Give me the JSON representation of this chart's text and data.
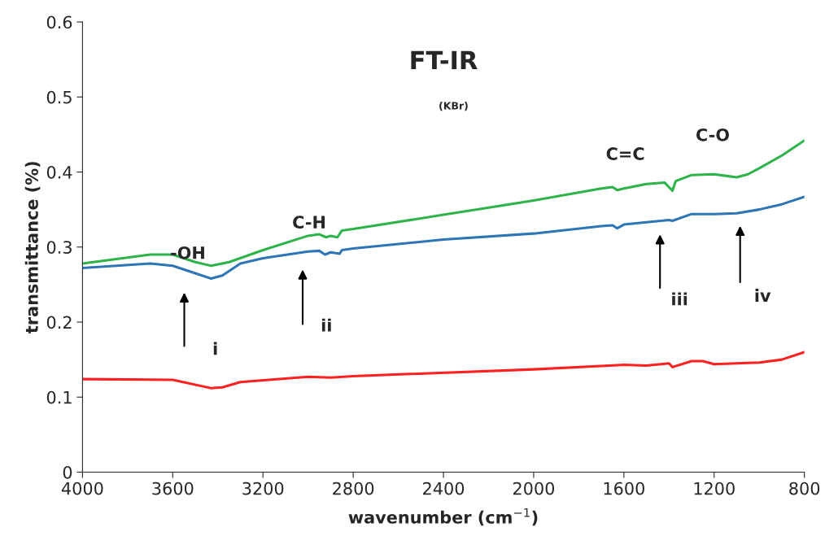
{
  "chart_data": {
    "type": "line",
    "title": "FT-IR",
    "xlabel": "wavenumber (cm$^{−1}$)",
    "ylabel": "transmittance (%)",
    "xlim": [
      4000,
      800
    ],
    "xticks": [
      4000,
      3600,
      3200,
      2800,
      2400,
      2000,
      1600,
      1200,
      800
    ],
    "ylim": [
      0,
      0.6
    ],
    "yticks": [
      0,
      0.1,
      0.2,
      0.3,
      0.4,
      0.5,
      0.6
    ],
    "grid": false,
    "legend": false,
    "marker": "none",
    "line_style": "solid",
    "series": [
      {
        "color": "#2e75b6",
        "x": [
          4000,
          3700,
          3600,
          3500,
          3430,
          3380,
          3300,
          3200,
          3000,
          2950,
          2925,
          2900,
          2860,
          2850,
          2800,
          2400,
          2000,
          1700,
          1650,
          1630,
          1600,
          1500,
          1400,
          1385,
          1300,
          1200,
          1100,
          1000,
          900,
          800
        ],
        "values": [
          0.272,
          0.278,
          0.275,
          0.265,
          0.258,
          0.262,
          0.278,
          0.285,
          0.294,
          0.295,
          0.29,
          0.293,
          0.291,
          0.296,
          0.298,
          0.31,
          0.318,
          0.328,
          0.329,
          0.325,
          0.33,
          0.333,
          0.336,
          0.335,
          0.344,
          0.344,
          0.345,
          0.35,
          0.357,
          0.367
        ]
      },
      {
        "color": "#ff2020",
        "x": [
          4000,
          3600,
          3430,
          3380,
          3300,
          3000,
          2900,
          2800,
          2000,
          1600,
          1500,
          1400,
          1385,
          1300,
          1250,
          1200,
          1000,
          900,
          800
        ],
        "values": [
          0.124,
          0.123,
          0.112,
          0.113,
          0.12,
          0.127,
          0.126,
          0.128,
          0.137,
          0.143,
          0.142,
          0.145,
          0.14,
          0.148,
          0.148,
          0.144,
          0.146,
          0.15,
          0.16
        ]
      },
      {
        "color": "#2db34a",
        "x": [
          4000,
          3700,
          3600,
          3500,
          3430,
          3350,
          3200,
          3000,
          2950,
          2920,
          2900,
          2870,
          2850,
          2800,
          2400,
          2000,
          1700,
          1650,
          1630,
          1600,
          1500,
          1420,
          1385,
          1370,
          1300,
          1200,
          1150,
          1100,
          1050,
          1000,
          900,
          800
        ],
        "values": [
          0.278,
          0.29,
          0.29,
          0.28,
          0.275,
          0.28,
          0.296,
          0.315,
          0.317,
          0.313,
          0.315,
          0.313,
          0.322,
          0.324,
          0.343,
          0.362,
          0.378,
          0.38,
          0.376,
          0.378,
          0.384,
          0.386,
          0.375,
          0.388,
          0.396,
          0.397,
          0.395,
          0.393,
          0.397,
          0.405,
          0.422,
          0.442
        ]
      }
    ],
    "annotations": [
      "(KBr)",
      "-OH",
      "C-H",
      "C=C",
      "C-O",
      "i",
      "ii",
      "iii",
      "iv"
    ]
  }
}
